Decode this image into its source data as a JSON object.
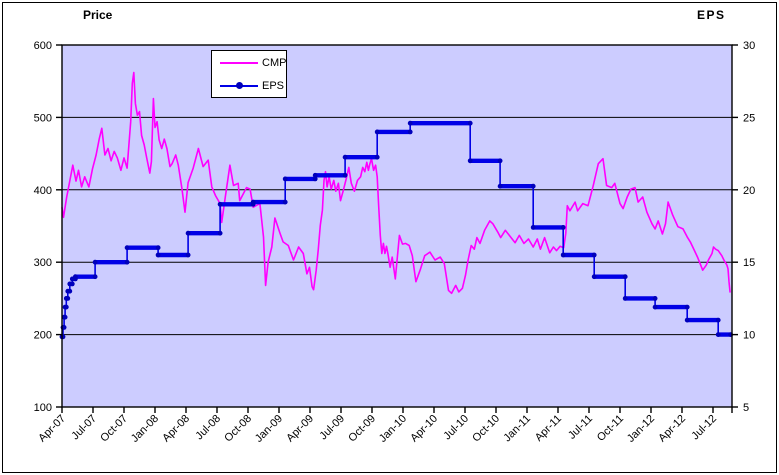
{
  "titles": {
    "left": "Price",
    "right": "EPS"
  },
  "legend": {
    "items": [
      {
        "label": "CMP",
        "color": "#FF00FF",
        "marker": false
      },
      {
        "label": "EPS",
        "color": "#0000E6",
        "marker": true,
        "marker_color": "#0000BB"
      }
    ]
  },
  "colors": {
    "plot_background": "#CCCCFF",
    "gridline": "#000000",
    "axis": "#000000",
    "cmp_line": "#FF00FF",
    "eps_line": "#0000E6",
    "eps_marker": "#0000BB",
    "frame_border": "#000000",
    "page_background": "#FFFFFF"
  },
  "chart_data": {
    "type": "line",
    "title": "",
    "legend_position": "top-center-inside",
    "grid": "horizontal-major",
    "x_axis": {
      "tick_interval_months": 3,
      "labels": [
        "Apr-07",
        "Jul-07",
        "Oct-07",
        "Jan-08",
        "Apr-08",
        "Jul-08",
        "Oct-08",
        "Jan-09",
        "Apr-09",
        "Jul-09",
        "Oct-09",
        "Jan-10",
        "Apr-10",
        "Jul-10",
        "Oct-10",
        "Jan-11",
        "Apr-11",
        "Jul-11",
        "Oct-11",
        "Jan-12",
        "Apr-12",
        "Jul-12"
      ]
    },
    "y_left": {
      "title": "Price",
      "min": 100,
      "max": 600,
      "ticks": [
        600,
        500,
        400,
        300,
        200,
        100
      ]
    },
    "y_right": {
      "title": "EPS",
      "min": 5,
      "max": 30,
      "ticks": [
        30,
        25,
        20,
        15,
        10,
        5
      ]
    },
    "series": [
      {
        "name": "CMP",
        "axis": "left",
        "style": "line",
        "color": "#FF00FF",
        "points": [
          [
            0,
            376
          ],
          [
            0.15,
            362
          ],
          [
            0.45,
            390
          ],
          [
            0.7,
            408
          ],
          [
            1.05,
            434
          ],
          [
            1.35,
            412
          ],
          [
            1.6,
            427
          ],
          [
            1.9,
            404
          ],
          [
            2.2,
            418
          ],
          [
            2.6,
            404
          ],
          [
            2.95,
            429
          ],
          [
            3.3,
            448
          ],
          [
            3.6,
            470
          ],
          [
            3.85,
            485
          ],
          [
            4.15,
            448
          ],
          [
            4.45,
            457
          ],
          [
            4.75,
            440
          ],
          [
            5.05,
            453
          ],
          [
            5.35,
            444
          ],
          [
            5.7,
            427
          ],
          [
            6.0,
            444
          ],
          [
            6.3,
            430
          ],
          [
            6.65,
            494
          ],
          [
            6.8,
            547
          ],
          [
            6.95,
            562
          ],
          [
            7.1,
            519
          ],
          [
            7.3,
            503
          ],
          [
            7.5,
            508
          ],
          [
            7.7,
            475
          ],
          [
            7.95,
            462
          ],
          [
            8.2,
            444
          ],
          [
            8.5,
            423
          ],
          [
            8.65,
            439
          ],
          [
            8.85,
            526
          ],
          [
            9.0,
            486
          ],
          [
            9.2,
            494
          ],
          [
            9.4,
            469
          ],
          [
            9.65,
            457
          ],
          [
            9.9,
            470
          ],
          [
            10.15,
            457
          ],
          [
            10.45,
            432
          ],
          [
            10.65,
            436
          ],
          [
            11.0,
            448
          ],
          [
            11.25,
            434
          ],
          [
            11.6,
            402
          ],
          [
            11.9,
            369
          ],
          [
            12.2,
            410
          ],
          [
            12.7,
            430
          ],
          [
            13.2,
            457
          ],
          [
            13.65,
            432
          ],
          [
            14.15,
            441
          ],
          [
            14.5,
            404
          ],
          [
            14.85,
            392
          ],
          [
            15.3,
            381
          ],
          [
            15.45,
            355
          ],
          [
            15.8,
            390
          ],
          [
            16.25,
            434
          ],
          [
            16.6,
            406
          ],
          [
            17.05,
            409
          ],
          [
            17.2,
            385
          ],
          [
            17.85,
            403
          ],
          [
            18.2,
            401
          ],
          [
            18.5,
            376
          ],
          [
            19.15,
            381
          ],
          [
            19.5,
            335
          ],
          [
            19.7,
            268
          ],
          [
            19.95,
            300
          ],
          [
            20.3,
            321
          ],
          [
            20.6,
            361
          ],
          [
            21.1,
            340
          ],
          [
            21.4,
            328
          ],
          [
            21.9,
            323
          ],
          [
            22.4,
            303
          ],
          [
            22.9,
            321
          ],
          [
            23.35,
            312
          ],
          [
            23.7,
            284
          ],
          [
            23.95,
            293
          ],
          [
            24.2,
            266
          ],
          [
            24.35,
            262
          ],
          [
            24.6,
            289
          ],
          [
            24.8,
            318
          ],
          [
            25.0,
            351
          ],
          [
            25.2,
            372
          ],
          [
            25.35,
            413
          ],
          [
            25.5,
            425
          ],
          [
            25.65,
            404
          ],
          [
            25.85,
            418
          ],
          [
            26.05,
            401
          ],
          [
            26.3,
            413
          ],
          [
            26.5,
            398
          ],
          [
            26.75,
            409
          ],
          [
            26.95,
            385
          ],
          [
            27.2,
            398
          ],
          [
            27.5,
            415
          ],
          [
            27.75,
            431
          ],
          [
            28.0,
            409
          ],
          [
            28.3,
            398
          ],
          [
            28.6,
            413
          ],
          [
            28.9,
            418
          ],
          [
            29.1,
            431
          ],
          [
            29.3,
            425
          ],
          [
            29.5,
            438
          ],
          [
            29.65,
            427
          ],
          [
            29.8,
            436
          ],
          [
            29.95,
            443
          ],
          [
            30.15,
            427
          ],
          [
            30.35,
            434
          ],
          [
            30.5,
            418
          ],
          [
            30.65,
            377
          ],
          [
            30.8,
            337
          ],
          [
            30.95,
            312
          ],
          [
            31.1,
            326
          ],
          [
            31.25,
            312
          ],
          [
            31.4,
            322
          ],
          [
            31.55,
            311
          ],
          [
            31.75,
            293
          ],
          [
            31.95,
            307
          ],
          [
            32.25,
            277
          ],
          [
            32.65,
            337
          ],
          [
            32.95,
            325
          ],
          [
            33.25,
            326
          ],
          [
            33.6,
            323
          ],
          [
            33.9,
            309
          ],
          [
            34.25,
            273
          ],
          [
            34.65,
            289
          ],
          [
            35.1,
            309
          ],
          [
            35.6,
            314
          ],
          [
            36.1,
            303
          ],
          [
            36.6,
            307
          ],
          [
            37.0,
            298
          ],
          [
            37.4,
            261
          ],
          [
            37.7,
            257
          ],
          [
            38.1,
            268
          ],
          [
            38.4,
            259
          ],
          [
            38.75,
            264
          ],
          [
            39.05,
            282
          ],
          [
            39.3,
            303
          ],
          [
            39.6,
            323
          ],
          [
            39.9,
            318
          ],
          [
            40.15,
            334
          ],
          [
            40.45,
            326
          ],
          [
            40.9,
            344
          ],
          [
            41.4,
            357
          ],
          [
            41.7,
            353
          ],
          [
            42.15,
            342
          ],
          [
            42.45,
            334
          ],
          [
            42.9,
            344
          ],
          [
            43.4,
            335
          ],
          [
            43.85,
            327
          ],
          [
            44.25,
            337
          ],
          [
            44.7,
            326
          ],
          [
            45.15,
            332
          ],
          [
            45.6,
            321
          ],
          [
            46.0,
            332
          ],
          [
            46.3,
            318
          ],
          [
            46.7,
            334
          ],
          [
            47.2,
            313
          ],
          [
            47.55,
            321
          ],
          [
            47.85,
            316
          ],
          [
            48.2,
            322
          ],
          [
            48.55,
            320
          ],
          [
            48.75,
            340
          ],
          [
            48.9,
            378
          ],
          [
            49.15,
            371
          ],
          [
            49.65,
            383
          ],
          [
            49.9,
            371
          ],
          [
            50.4,
            381
          ],
          [
            50.9,
            378
          ],
          [
            51.4,
            405
          ],
          [
            51.9,
            436
          ],
          [
            52.35,
            443
          ],
          [
            52.7,
            406
          ],
          [
            53.2,
            403
          ],
          [
            53.5,
            409
          ],
          [
            54.0,
            381
          ],
          [
            54.3,
            374
          ],
          [
            54.7,
            390
          ],
          [
            55.05,
            401
          ],
          [
            55.45,
            403
          ],
          [
            55.75,
            383
          ],
          [
            56.2,
            390
          ],
          [
            56.6,
            369
          ],
          [
            57.1,
            353
          ],
          [
            57.4,
            346
          ],
          [
            57.7,
            357
          ],
          [
            58.1,
            339
          ],
          [
            58.4,
            353
          ],
          [
            58.65,
            383
          ],
          [
            59.1,
            365
          ],
          [
            59.6,
            349
          ],
          [
            60.1,
            346
          ],
          [
            60.5,
            335
          ],
          [
            60.8,
            328
          ],
          [
            61.1,
            319
          ],
          [
            61.5,
            307
          ],
          [
            61.75,
            298
          ],
          [
            62.0,
            289
          ],
          [
            62.35,
            296
          ],
          [
            62.55,
            303
          ],
          [
            62.9,
            312
          ],
          [
            63.05,
            321
          ],
          [
            63.25,
            318
          ],
          [
            63.5,
            316
          ],
          [
            63.85,
            309
          ],
          [
            64.05,
            303
          ],
          [
            64.35,
            296
          ],
          [
            64.45,
            291
          ],
          [
            64.55,
            273
          ],
          [
            64.65,
            258
          ]
        ]
      },
      {
        "name": "EPS",
        "axis": "right",
        "style": "step",
        "color": "#0000E6",
        "marker_color": "#0000BB",
        "points": [
          [
            0,
            9.85
          ],
          [
            0.1,
            10.5
          ],
          [
            0.2,
            11.2
          ],
          [
            0.3,
            11.9
          ],
          [
            0.42,
            12.5
          ],
          [
            0.56,
            13.0
          ],
          [
            0.75,
            13.5
          ],
          [
            1.0,
            13.85
          ],
          [
            1.3,
            14.0
          ],
          [
            3.2,
            15.0
          ],
          [
            6.3,
            16.0
          ],
          [
            9.3,
            15.5
          ],
          [
            12.2,
            17.0
          ],
          [
            15.3,
            19.0
          ],
          [
            18.5,
            19.15
          ],
          [
            21.6,
            20.75
          ],
          [
            24.5,
            21.0
          ],
          [
            27.4,
            22.25
          ],
          [
            30.5,
            24.0
          ],
          [
            33.7,
            24.6
          ],
          [
            39.5,
            22.0
          ],
          [
            42.4,
            20.25
          ],
          [
            45.6,
            17.4
          ],
          [
            48.5,
            15.5
          ],
          [
            51.5,
            14.0
          ],
          [
            54.5,
            12.5
          ],
          [
            57.4,
            11.9
          ],
          [
            60.5,
            11.0
          ],
          [
            63.5,
            10.0
          ],
          [
            64.7,
            10.0
          ]
        ]
      }
    ]
  }
}
